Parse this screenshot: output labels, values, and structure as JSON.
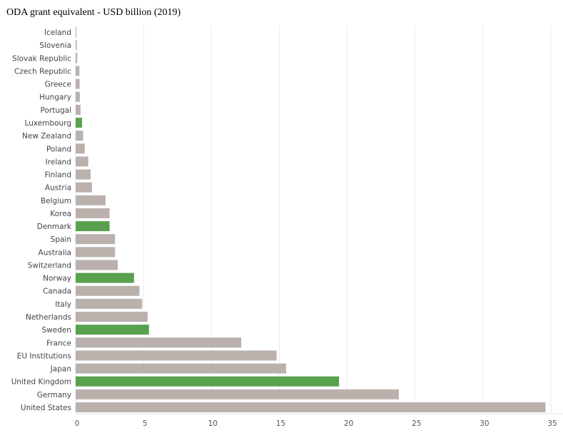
{
  "chart_data": {
    "type": "bar",
    "orientation": "horizontal",
    "title": "ODA grant equivalent - USD billion (2019)",
    "xlabel": "",
    "ylabel": "",
    "xlim": [
      0,
      35
    ],
    "xticks": [
      0,
      5,
      10,
      15,
      20,
      25,
      30,
      35
    ],
    "grid": "vertical",
    "colors": {
      "default": "#bab0ac",
      "highlight": "#59a14f"
    },
    "categories": [
      "Iceland",
      "Slovenia",
      "Slovak Republic",
      "Czech Republic",
      "Greece",
      "Hungary",
      "Portugal",
      "Luxembourg",
      "New Zealand",
      "Poland",
      "Ireland",
      "Finland",
      "Austria",
      "Belgium",
      "Korea",
      "Denmark",
      "Spain",
      "Australia",
      "Switzerland",
      "Norway",
      "Canada",
      "Italy",
      "Netherlands",
      "Sweden",
      "France",
      "EU Institutions",
      "Japan",
      "United Kingdom",
      "Germany",
      "United States"
    ],
    "values": [
      0.05,
      0.08,
      0.12,
      0.28,
      0.29,
      0.31,
      0.36,
      0.47,
      0.55,
      0.67,
      0.93,
      1.1,
      1.2,
      2.2,
      2.5,
      2.5,
      2.9,
      2.9,
      3.1,
      4.3,
      4.7,
      4.9,
      5.3,
      5.4,
      12.2,
      14.8,
      15.5,
      19.4,
      23.8,
      34.6
    ],
    "highlighted": [
      "Luxembourg",
      "Denmark",
      "Norway",
      "Sweden",
      "United Kingdom"
    ]
  }
}
